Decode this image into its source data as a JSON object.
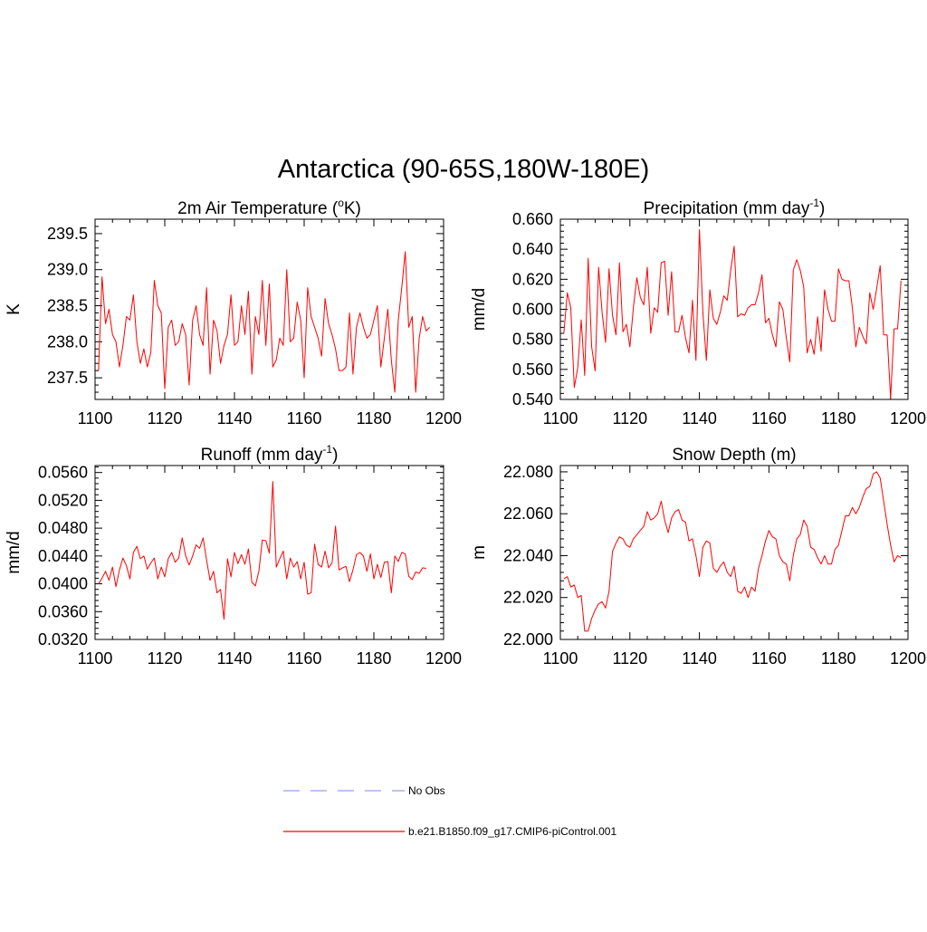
{
  "figure_title": "Antarctica (90-65S,180W-180E)",
  "legend": {
    "obs_label": "No Obs",
    "obs_color": "#9a9cff",
    "model_label": "b.e21.B1850.f09_g17.CMIP6-piControl.001",
    "model_color": "#ff0000"
  },
  "chart_data": [
    {
      "type": "line",
      "title": "2m Air Temperature (°K)",
      "title_parts": [
        "2m Air Temperature (",
        "o",
        "K)"
      ],
      "ylabel": "K",
      "xlim": [
        1100,
        1200
      ],
      "ylim": [
        237.2,
        239.7
      ],
      "x_ticks": [
        "1100",
        "1120",
        "1140",
        "1160",
        "1180",
        "1200"
      ],
      "y_ticks": [
        "237.5",
        "238.0",
        "238.5",
        "239.0",
        "239.5"
      ],
      "series": [
        {
          "color": "#ff0000",
          "x_start": 1101,
          "values": [
            237.6,
            238.9,
            238.25,
            238.45,
            238.1,
            238.0,
            237.65,
            237.95,
            238.35,
            238.3,
            238.65,
            238.0,
            237.7,
            237.9,
            237.65,
            237.85,
            238.85,
            238.5,
            238.4,
            237.35,
            238.2,
            238.3,
            237.95,
            238.0,
            238.25,
            238.1,
            237.4,
            238.3,
            238.5,
            238.1,
            237.95,
            238.75,
            237.55,
            238.3,
            238.15,
            237.7,
            237.95,
            238.1,
            238.65,
            237.95,
            238.0,
            238.5,
            238.1,
            238.7,
            237.55,
            238.35,
            238.1,
            238.85,
            237.95,
            238.8,
            237.65,
            237.75,
            238.05,
            237.95,
            239.0,
            238.0,
            238.05,
            238.55,
            238.3,
            237.5,
            238.75,
            238.35,
            238.2,
            238.05,
            237.8,
            238.6,
            238.25,
            238.1,
            237.9,
            237.6,
            237.6,
            237.65,
            238.4,
            237.55,
            238.2,
            238.4,
            238.2,
            238.05,
            238.1,
            238.3,
            238.5,
            237.65,
            238.05,
            238.45,
            237.75,
            237.3,
            238.3,
            238.75,
            239.25,
            238.2,
            238.35,
            237.3,
            238.05,
            238.35,
            238.15,
            238.2
          ]
        }
      ]
    },
    {
      "type": "line",
      "title": "Precipitation (mm day-1)",
      "title_parts": [
        "Precipitation (mm day",
        "-1",
        ")"
      ],
      "ylabel": "mm/d",
      "xlim": [
        1100,
        1200
      ],
      "ylim": [
        0.54,
        0.66
      ],
      "x_ticks": [
        "1100",
        "1120",
        "1140",
        "1160",
        "1180",
        "1200"
      ],
      "y_ticks": [
        "0.540",
        "0.560",
        "0.580",
        "0.600",
        "0.620",
        "0.640",
        "0.660"
      ],
      "series": [
        {
          "color": "#ff0000",
          "x_start": 1101,
          "values": [
            0.584,
            0.611,
            0.601,
            0.548,
            0.561,
            0.593,
            0.556,
            0.634,
            0.575,
            0.559,
            0.628,
            0.598,
            0.578,
            0.627,
            0.596,
            0.583,
            0.631,
            0.585,
            0.59,
            0.575,
            0.601,
            0.621,
            0.608,
            0.603,
            0.628,
            0.584,
            0.601,
            0.598,
            0.631,
            0.632,
            0.596,
            0.625,
            0.585,
            0.585,
            0.596,
            0.581,
            0.571,
            0.606,
            0.566,
            0.653,
            0.598,
            0.566,
            0.613,
            0.594,
            0.59,
            0.598,
            0.609,
            0.606,
            0.626,
            0.642,
            0.595,
            0.597,
            0.596,
            0.601,
            0.603,
            0.603,
            0.611,
            0.623,
            0.591,
            0.594,
            0.583,
            0.575,
            0.605,
            0.6,
            0.581,
            0.565,
            0.626,
            0.633,
            0.626,
            0.615,
            0.571,
            0.58,
            0.57,
            0.595,
            0.572,
            0.613,
            0.6,
            0.592,
            0.592,
            0.627,
            0.62,
            0.619,
            0.619,
            0.601,
            0.575,
            0.588,
            0.582,
            0.577,
            0.611,
            0.6,
            0.614,
            0.629,
            0.583,
            0.583,
            0.541,
            0.587,
            0.587,
            0.619
          ]
        }
      ]
    },
    {
      "type": "line",
      "title": "Runoff (mm day-1)",
      "title_parts": [
        "Runoff (mm day",
        "-1",
        ")"
      ],
      "ylabel": "mm/d",
      "xlim": [
        1100,
        1200
      ],
      "ylim": [
        0.032,
        0.057
      ],
      "x_ticks": [
        "1100",
        "1120",
        "1140",
        "1160",
        "1180",
        "1200"
      ],
      "y_ticks": [
        "0.0320",
        "0.0360",
        "0.0400",
        "0.0440",
        "0.0480",
        "0.0520",
        "0.0560"
      ],
      "series": [
        {
          "color": "#ff0000",
          "x_start": 1101,
          "values": [
            0.04,
            0.0408,
            0.0418,
            0.0405,
            0.0424,
            0.0396,
            0.042,
            0.0437,
            0.0426,
            0.0407,
            0.0445,
            0.0454,
            0.0436,
            0.044,
            0.0421,
            0.043,
            0.0437,
            0.0407,
            0.0424,
            0.041,
            0.0436,
            0.0445,
            0.0431,
            0.0437,
            0.0466,
            0.044,
            0.0427,
            0.044,
            0.0456,
            0.0451,
            0.0466,
            0.0434,
            0.0405,
            0.0418,
            0.0387,
            0.0392,
            0.0349,
            0.0436,
            0.041,
            0.0445,
            0.0429,
            0.0442,
            0.0428,
            0.045,
            0.0402,
            0.0397,
            0.0418,
            0.0463,
            0.0462,
            0.0444,
            0.0547,
            0.0424,
            0.0436,
            0.0447,
            0.0407,
            0.0437,
            0.0424,
            0.0432,
            0.0407,
            0.0431,
            0.0385,
            0.0387,
            0.0457,
            0.0428,
            0.0424,
            0.0447,
            0.0423,
            0.043,
            0.0483,
            0.042,
            0.0423,
            0.0425,
            0.0403,
            0.042,
            0.0442,
            0.0445,
            0.044,
            0.0418,
            0.0443,
            0.0407,
            0.0428,
            0.0409,
            0.0431,
            0.0432,
            0.0387,
            0.044,
            0.0432,
            0.0445,
            0.0443,
            0.0411,
            0.0406,
            0.0417,
            0.0415,
            0.0423,
            0.0422
          ]
        }
      ]
    },
    {
      "type": "line",
      "title": "Snow Depth (m)",
      "title_parts": [
        "Snow Depth (m)"
      ],
      "ylabel": "m",
      "xlim": [
        1100,
        1200
      ],
      "ylim": [
        22.0,
        22.083
      ],
      "x_ticks": [
        "1100",
        "1120",
        "1140",
        "1160",
        "1180",
        "1200"
      ],
      "y_ticks": [
        "22.000",
        "22.020",
        "22.040",
        "22.060",
        "22.080"
      ],
      "series": [
        {
          "color": "#ff0000",
          "x_start": 1101,
          "values": [
            22.029,
            22.03,
            22.025,
            22.026,
            22.02,
            22.021,
            22.004,
            22.004,
            22.01,
            22.014,
            22.017,
            22.018,
            22.015,
            22.023,
            22.042,
            22.046,
            22.049,
            22.048,
            22.045,
            22.044,
            22.048,
            22.05,
            22.052,
            22.054,
            22.061,
            22.057,
            22.058,
            22.06,
            22.066,
            22.057,
            22.051,
            22.058,
            22.061,
            22.062,
            22.057,
            22.056,
            22.047,
            22.048,
            22.04,
            22.03,
            22.044,
            22.047,
            22.046,
            22.034,
            22.032,
            22.035,
            22.037,
            22.032,
            22.03,
            22.035,
            22.023,
            22.022,
            22.025,
            22.02,
            22.025,
            22.023,
            22.034,
            22.04,
            22.047,
            22.052,
            22.049,
            22.048,
            22.04,
            22.037,
            22.036,
            22.028,
            22.04,
            22.048,
            22.05,
            22.057,
            22.054,
            22.044,
            22.043,
            22.039,
            22.036,
            22.04,
            22.036,
            22.036,
            22.043,
            22.045,
            22.052,
            22.059,
            22.059,
            22.063,
            22.06,
            22.063,
            22.068,
            22.072,
            22.073,
            22.079,
            22.08,
            22.077,
            22.066,
            22.055,
            22.045,
            22.037,
            22.04,
            22.039
          ]
        }
      ]
    }
  ]
}
